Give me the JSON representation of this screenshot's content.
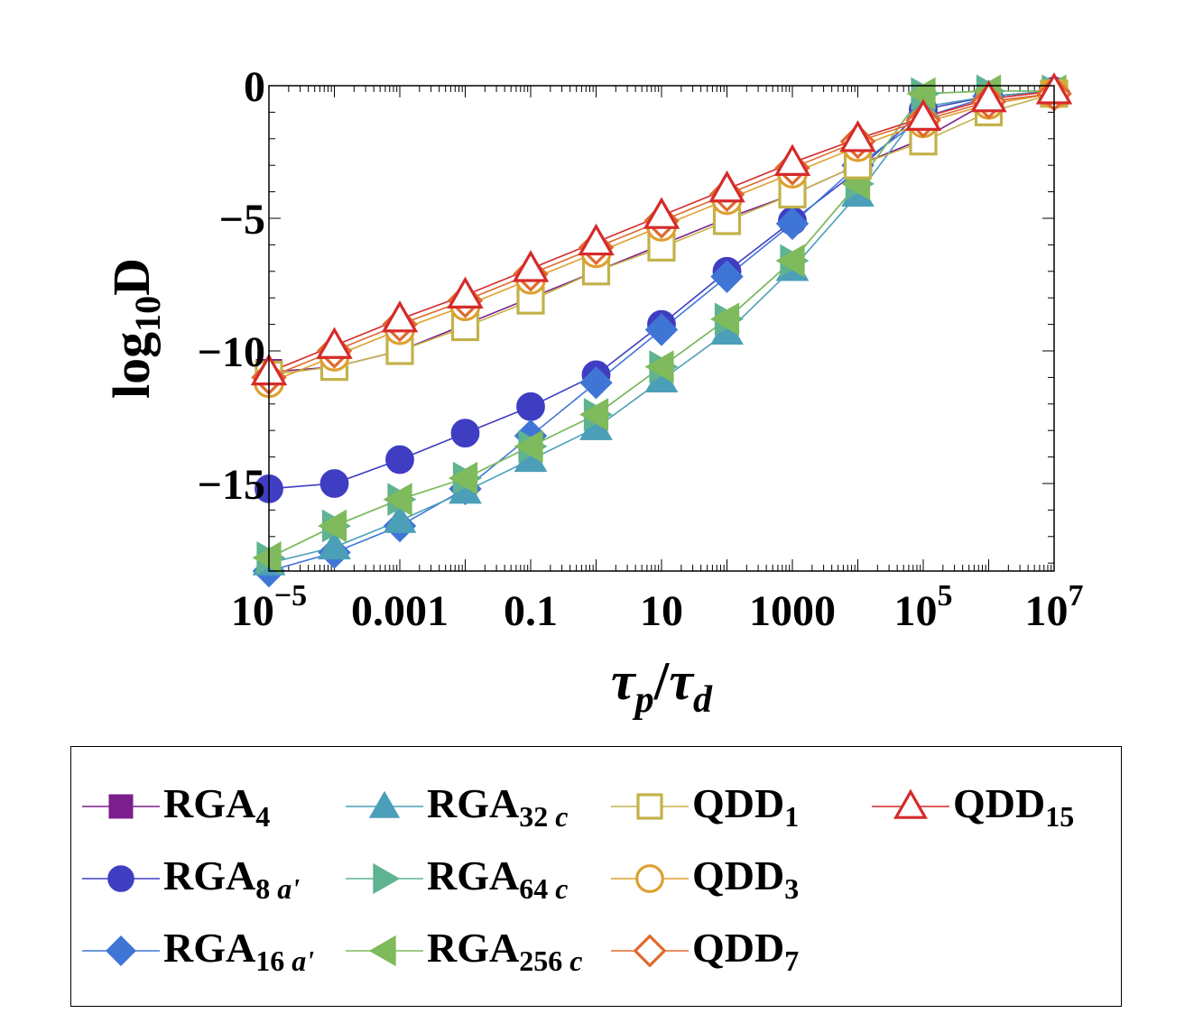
{
  "chart_data": {
    "type": "line",
    "xscale": "log10",
    "xlabel": {
      "main": "τ",
      "sub1": "p",
      "sep": "/",
      "main2": "τ",
      "sub2": "d"
    },
    "ylabel": {
      "pre": "log",
      "sub": "10",
      "post": "D"
    },
    "xlim": [
      -5,
      7
    ],
    "ylim": [
      -18.3,
      0
    ],
    "x_ticks": [
      {
        "pos": -5,
        "base": "10",
        "exp": "−5"
      },
      {
        "pos": -3,
        "base": "0.001",
        "exp": ""
      },
      {
        "pos": -1,
        "base": "0.1",
        "exp": ""
      },
      {
        "pos": 1,
        "base": "10",
        "exp": ""
      },
      {
        "pos": 3,
        "base": "1000",
        "exp": ""
      },
      {
        "pos": 5,
        "base": "10",
        "exp": "5"
      },
      {
        "pos": 7,
        "base": "10",
        "exp": "7"
      }
    ],
    "y_ticks": [
      {
        "value": 0,
        "label": "0"
      },
      {
        "value": -5,
        "label": "−5"
      },
      {
        "value": -10,
        "label": "−10"
      },
      {
        "value": -15,
        "label": "−15"
      }
    ],
    "x": [
      -5,
      -4,
      -3,
      -2,
      -1,
      0,
      1,
      2,
      3,
      4,
      5,
      6,
      7
    ],
    "series": [
      {
        "name": "RGA",
        "sub": "4",
        "color": "#7b1f8c",
        "marker": "square-filled",
        "values": [
          -10.8,
          -10.6,
          -10.0,
          -9.0,
          -8.0,
          -7.0,
          -6.0,
          -5.0,
          -4.1,
          -3.0,
          -2.0,
          -0.6,
          -0.3
        ]
      },
      {
        "name": "RGA",
        "sub": "8 a'",
        "color": "#3f3dc2",
        "marker": "circle-filled",
        "values": [
          -15.2,
          -15.0,
          -14.1,
          -13.1,
          -12.1,
          -10.9,
          -9.0,
          -7.0,
          -5.1,
          -3.2,
          -0.9,
          -0.4,
          -0.2
        ]
      },
      {
        "name": "RGA",
        "sub": "16 a'",
        "color": "#3f76d6",
        "marker": "diamond-filled",
        "values": [
          -18.3,
          -17.6,
          -16.6,
          -15.2,
          -13.2,
          -11.2,
          -9.2,
          -7.2,
          -5.2,
          -3.0,
          -1.2,
          -0.4,
          -0.2
        ]
      },
      {
        "name": "RGA",
        "sub": "32 c",
        "color": "#4b9fb8",
        "marker": "triangle-up-filled",
        "values": [
          -18.0,
          -17.4,
          -16.4,
          -15.3,
          -14.1,
          -12.9,
          -11.1,
          -9.3,
          -6.9,
          -4.1,
          -0.8,
          -0.4,
          -0.2
        ]
      },
      {
        "name": "RGA",
        "sub": "64 c",
        "color": "#5fb391",
        "marker": "triangle-right-filled",
        "values": [
          -17.8,
          -16.6,
          -15.6,
          -14.8,
          -13.6,
          -12.4,
          -10.6,
          -8.8,
          -6.6,
          -3.7,
          -0.3,
          -0.2,
          -0.2
        ]
      },
      {
        "name": "RGA",
        "sub": "256 c",
        "color": "#7fba5c",
        "marker": "triangle-left-filled",
        "values": [
          -17.8,
          -16.6,
          -15.6,
          -14.8,
          -13.6,
          -12.4,
          -10.6,
          -8.8,
          -6.6,
          -3.7,
          -0.3,
          -0.2,
          -0.2
        ]
      },
      {
        "name": "QDD",
        "sub": "1",
        "color": "#c3b24a",
        "marker": "square-open",
        "values": [
          -10.9,
          -10.6,
          -10.0,
          -9.1,
          -8.1,
          -7.0,
          -6.1,
          -5.1,
          -4.1,
          -3.0,
          -2.1,
          -1.0,
          -0.3
        ]
      },
      {
        "name": "QDD",
        "sub": "3",
        "color": "#dea030",
        "marker": "circle-open",
        "values": [
          -11.2,
          -10.2,
          -9.2,
          -8.3,
          -7.3,
          -6.3,
          -5.3,
          -4.3,
          -3.3,
          -2.3,
          -1.4,
          -0.7,
          -0.3
        ]
      },
      {
        "name": "QDD",
        "sub": "7",
        "color": "#e06a2e",
        "marker": "diamond-open",
        "values": [
          -11.0,
          -10.0,
          -9.0,
          -8.1,
          -7.1,
          -6.1,
          -5.1,
          -4.1,
          -3.1,
          -2.1,
          -1.3,
          -0.6,
          -0.3
        ]
      },
      {
        "name": "QDD",
        "sub": "15",
        "color": "#d62a2a",
        "marker": "triangle-up-open",
        "values": [
          -10.8,
          -9.8,
          -8.8,
          -7.9,
          -6.9,
          -5.9,
          -4.9,
          -3.9,
          -2.9,
          -2.0,
          -1.2,
          -0.5,
          -0.2
        ]
      }
    ],
    "legend": {
      "placement": "bottom",
      "columns": 4
    }
  }
}
